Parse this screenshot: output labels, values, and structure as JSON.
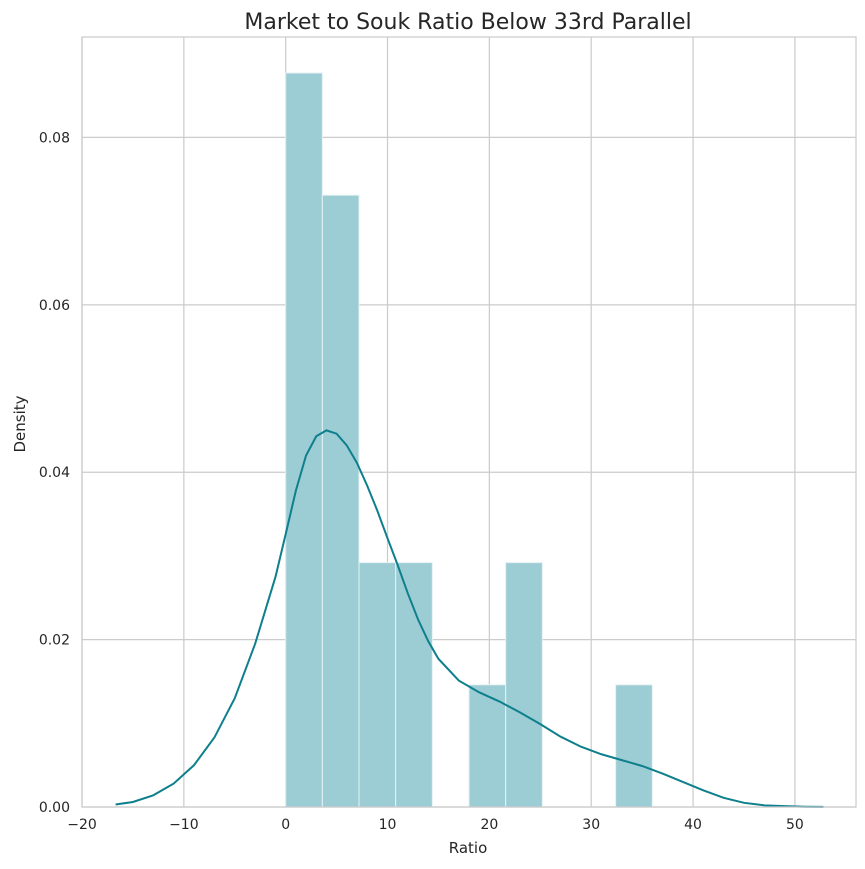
{
  "chart_data": {
    "type": "bar",
    "subtype": "histogram with kde line",
    "title": "Market to Souk Ratio Below 33rd Parallel",
    "xlabel": "Ratio",
    "ylabel": "Density",
    "xlim": [
      -20,
      56
    ],
    "ylim": [
      0,
      0.092
    ],
    "xticks": [
      -20,
      -10,
      0,
      10,
      20,
      30,
      40,
      50
    ],
    "xtick_labels": [
      "−20",
      "−10",
      "0",
      "10",
      "20",
      "30",
      "40",
      "50"
    ],
    "yticks": [
      0.0,
      0.02,
      0.04,
      0.06,
      0.08
    ],
    "ytick_labels": [
      "0.00",
      "0.02",
      "0.04",
      "0.06",
      "0.08"
    ],
    "grid": true,
    "bar_color": "#9ccdd4",
    "line_color": "#0e7f8c",
    "bins": [
      {
        "x0": 0.0,
        "x1": 3.6,
        "density": 0.0877
      },
      {
        "x0": 3.6,
        "x1": 7.2,
        "density": 0.0731
      },
      {
        "x0": 7.2,
        "x1": 10.8,
        "density": 0.0292
      },
      {
        "x0": 10.8,
        "x1": 14.4,
        "density": 0.0292
      },
      {
        "x0": 14.4,
        "x1": 18.0,
        "density": 0.0
      },
      {
        "x0": 18.0,
        "x1": 21.6,
        "density": 0.0146
      },
      {
        "x0": 21.6,
        "x1": 25.2,
        "density": 0.0292
      },
      {
        "x0": 25.2,
        "x1": 28.8,
        "density": 0.0
      },
      {
        "x0": 28.8,
        "x1": 32.4,
        "density": 0.0
      },
      {
        "x0": 32.4,
        "x1": 36.0,
        "density": 0.0146
      }
    ],
    "kde": {
      "x": [
        -16.7,
        -15,
        -13,
        -11,
        -9,
        -7,
        -5,
        -3,
        -1,
        0,
        1,
        2,
        3,
        4,
        5,
        6,
        7,
        8,
        9,
        10,
        11,
        12,
        13,
        14,
        15,
        17,
        19,
        21,
        23,
        25,
        27,
        29,
        31,
        33,
        35,
        37,
        39,
        41,
        43,
        45,
        47,
        49,
        51,
        52.8
      ],
      "y": [
        0.0003,
        0.0006,
        0.0014,
        0.0028,
        0.005,
        0.0083,
        0.013,
        0.0195,
        0.0275,
        0.0326,
        0.0378,
        0.042,
        0.0443,
        0.045,
        0.0446,
        0.0432,
        0.0411,
        0.0384,
        0.0354,
        0.0321,
        0.0289,
        0.0255,
        0.0224,
        0.0198,
        0.0177,
        0.0151,
        0.0137,
        0.0126,
        0.0113,
        0.0099,
        0.0084,
        0.0072,
        0.0063,
        0.0056,
        0.0049,
        0.004,
        0.003,
        0.002,
        0.0011,
        0.0005,
        0.0002,
        0.0001,
        3e-05,
        1e-05
      ]
    }
  }
}
